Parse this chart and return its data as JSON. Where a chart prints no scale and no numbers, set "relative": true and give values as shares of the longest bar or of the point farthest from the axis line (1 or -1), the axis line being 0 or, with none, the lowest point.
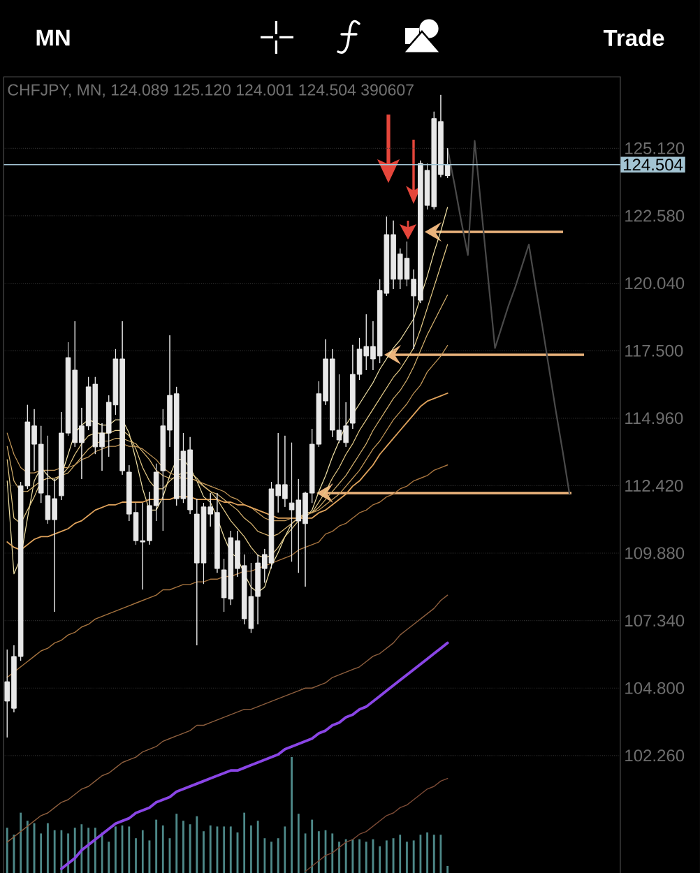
{
  "chart_data": [
    {
      "type": "candlestick",
      "title": "CHFJPY, MN, 124.089 125.120 124.001 124.504 390607",
      "annotations": [
        "MN",
        "Trade"
      ],
      "categories": [
        null,
        null,
        null,
        null,
        null,
        null,
        null,
        null,
        null,
        null,
        null,
        null,
        null,
        null,
        null,
        null,
        null,
        null,
        null,
        null,
        null,
        null,
        null,
        null,
        null,
        null,
        null,
        null,
        null,
        null,
        null,
        null,
        null,
        null,
        null,
        null,
        null,
        null,
        null,
        null,
        null,
        null,
        null,
        null,
        null,
        null,
        null,
        null,
        null,
        null,
        null,
        null,
        null,
        null,
        null,
        null,
        null,
        null,
        null,
        null,
        null,
        null,
        null,
        null,
        null,
        null,
        null,
        null,
        null,
        null,
        null,
        null,
        null,
        null,
        null,
        null,
        null,
        null,
        null,
        null,
        null,
        null,
        null,
        null,
        null,
        null,
        null,
        null,
        null,
        null,
        null
      ],
      "color": "#e8e8e8",
      "ohlc": [
        [
          105.04,
          106.25,
          102.94,
          104.31
        ],
        [
          104.04,
          106.41,
          103.89,
          105.99
        ],
        [
          105.99,
          112.56,
          105.83,
          112.41
        ],
        [
          112.41,
          115.46,
          112.3,
          114.82
        ],
        [
          114.67,
          115.3,
          112.98,
          113.98
        ],
        [
          113.98,
          114.67,
          111.77,
          112.14
        ],
        [
          112.04,
          114.3,
          110.99,
          111.14
        ],
        [
          111.14,
          112.67,
          107.67,
          111.93
        ],
        [
          112.04,
          115.19,
          111.88,
          114.4
        ],
        [
          114.4,
          117.82,
          114.3,
          117.24
        ],
        [
          116.77,
          118.61,
          113.88,
          114.04
        ],
        [
          114.04,
          115.35,
          112.67,
          114.67
        ],
        [
          114.67,
          116.51,
          114.51,
          116.14
        ],
        [
          116.24,
          116.51,
          113.61,
          113.88
        ],
        [
          113.88,
          114.77,
          112.98,
          114.4
        ],
        [
          114.4,
          115.82,
          113.51,
          115.56
        ],
        [
          115.46,
          117.56,
          115.09,
          117.19
        ],
        [
          117.19,
          118.61,
          112.83,
          112.98
        ],
        [
          112.93,
          113.19,
          111.09,
          111.35
        ],
        [
          111.41,
          111.77,
          110.2,
          110.35
        ],
        [
          110.35,
          111.77,
          108.51,
          110.3
        ],
        [
          110.35,
          112.19,
          110.2,
          111.67
        ],
        [
          111.67,
          113.25,
          111.09,
          112.93
        ],
        [
          112.98,
          115.3,
          110.72,
          114.67
        ],
        [
          114.51,
          118.08,
          113.88,
          115.82
        ],
        [
          115.88,
          116.14,
          111.67,
          111.93
        ],
        [
          111.93,
          114.4,
          111.77,
          113.72
        ],
        [
          113.77,
          114.25,
          111.35,
          111.51
        ],
        [
          111.35,
          111.93,
          106.41,
          109.51
        ],
        [
          109.51,
          111.77,
          108.72,
          111.62
        ],
        [
          111.62,
          112.14,
          110.88,
          111.35
        ],
        [
          111.41,
          112.14,
          109.14,
          109.3
        ],
        [
          109.25,
          109.67,
          107.67,
          108.2
        ],
        [
          108.15,
          110.72,
          107.93,
          110.46
        ],
        [
          110.35,
          110.72,
          108.99,
          109.3
        ],
        [
          109.41,
          109.83,
          107.2,
          107.41
        ],
        [
          107.04,
          109.51,
          106.88,
          108.25
        ],
        [
          108.25,
          109.83,
          107.2,
          109.51
        ],
        [
          109.3,
          110.04,
          108.77,
          109.83
        ],
        [
          109.51,
          112.56,
          109.3,
          112.3
        ],
        [
          112.04,
          114.4,
          111.41,
          112.46
        ],
        [
          112.46,
          114.3,
          111.62,
          111.93
        ],
        [
          111.77,
          114.04,
          109.56,
          111.51
        ],
        [
          111.88,
          112.67,
          109.14,
          111.09
        ],
        [
          110.99,
          112.19,
          108.62,
          112.14
        ],
        [
          112.14,
          114.56,
          111.77,
          113.98
        ],
        [
          113.98,
          116.35,
          113.88,
          115.88
        ],
        [
          115.61,
          117.93,
          115.46,
          117.19
        ],
        [
          117.19,
          117.56,
          114.25,
          114.51
        ],
        [
          114.51,
          116.61,
          114.04,
          114.14
        ],
        [
          114.04,
          115.56,
          113.88,
          114.67
        ],
        [
          114.77,
          117.72,
          114.56,
          116.61
        ],
        [
          116.61,
          117.98,
          116.4,
          117.56
        ],
        [
          117.3,
          118.87,
          116.77,
          117.66
        ],
        [
          117.66,
          118.61,
          116.77,
          117.19
        ],
        [
          117.3,
          120.19,
          117.03,
          119.77
        ],
        [
          119.66,
          122.55,
          119.56,
          121.87
        ],
        [
          121.87,
          122.4,
          119.82,
          120.19
        ],
        [
          120.19,
          121.35,
          119.82,
          121.14
        ],
        [
          120.98,
          121.61,
          119.93,
          120.19
        ],
        [
          120.19,
          120.56,
          117.56,
          119.56
        ],
        [
          119.4,
          124.66,
          119.29,
          124.55
        ],
        [
          124.29,
          124.55,
          122.82,
          122.97
        ],
        [
          122.92,
          126.5,
          122.82,
          126.24
        ],
        [
          126.13,
          127.13,
          124.03,
          124.13
        ],
        [
          124.089,
          125.12,
          124.001,
          124.504
        ],
        null,
        null,
        null,
        null,
        null,
        null,
        null,
        null,
        null,
        null,
        null,
        null,
        null,
        null,
        null,
        null,
        null,
        null,
        null,
        null,
        null,
        null,
        null,
        null,
        null
      ],
      "series": [
        {
          "type": "line",
          "color": "#f2e3a8",
          "values": [
            112.6,
            109.1,
            109.7,
            111.2,
            112.6,
            113.1,
            112.8,
            112.6,
            112.8,
            113.6,
            114.4,
            114.7,
            114.9,
            114.8,
            114.7,
            114.7,
            114.9,
            114.9,
            114.4,
            113.4,
            112.3,
            111.5,
            111.5,
            112.0,
            112.8,
            113.4,
            113.4,
            113.1,
            112.6,
            112.0,
            111.8,
            111.2,
            110.5,
            109.9,
            109.7,
            109.1,
            108.6,
            108.4,
            108.6,
            109.4,
            109.9,
            110.5,
            111.0,
            111.2,
            111.2,
            111.5,
            112.2,
            112.8,
            113.5,
            114.1,
            114.7,
            115.1,
            115.5,
            115.9,
            116.3,
            116.8,
            117.2,
            117.6,
            117.9,
            118.3,
            118.7,
            119.5,
            120.3,
            121.2,
            122.0,
            122.9,
            null,
            null,
            null,
            null,
            null,
            null,
            null,
            null,
            null,
            null,
            null,
            null,
            null,
            null,
            null,
            null,
            null,
            null,
            null,
            null,
            null,
            null,
            null,
            null,
            null
          ]
        },
        {
          "type": "line",
          "color": "#e6cc88",
          "values": [
            113.4,
            111.2,
            111.0,
            111.5,
            112.0,
            112.6,
            112.7,
            112.7,
            112.8,
            113.1,
            113.6,
            114.0,
            114.3,
            114.4,
            114.4,
            114.4,
            114.5,
            114.5,
            114.3,
            113.8,
            113.1,
            112.6,
            112.3,
            112.3,
            112.6,
            112.8,
            112.9,
            112.9,
            112.7,
            112.4,
            112.2,
            111.9,
            111.5,
            111.1,
            110.8,
            110.5,
            110.1,
            109.8,
            109.7,
            109.8,
            110.1,
            110.5,
            110.8,
            111.1,
            111.4,
            111.4,
            111.8,
            112.2,
            112.7,
            113.1,
            113.6,
            114.0,
            114.5,
            114.9,
            115.3,
            115.7,
            116.1,
            116.5,
            116.8,
            117.2,
            117.6,
            118.3,
            119.1,
            119.9,
            120.7,
            121.5,
            null,
            null,
            null,
            null,
            null,
            null,
            null,
            null,
            null,
            null,
            null,
            null,
            null,
            null,
            null,
            null,
            null,
            null,
            null,
            null,
            null,
            null,
            null,
            null,
            null
          ]
        },
        {
          "type": "line",
          "color": "#d8b470",
          "values": [
            113.9,
            112.6,
            112.2,
            112.2,
            112.4,
            112.6,
            112.7,
            112.7,
            112.8,
            112.9,
            113.2,
            113.5,
            113.8,
            114.0,
            114.1,
            114.1,
            114.2,
            114.2,
            114.1,
            114.0,
            113.7,
            113.4,
            113.0,
            112.8,
            112.7,
            112.7,
            112.7,
            112.7,
            112.6,
            112.4,
            112.2,
            112.1,
            111.9,
            111.7,
            111.5,
            111.2,
            111.0,
            110.7,
            110.6,
            110.5,
            110.6,
            110.8,
            111.0,
            111.2,
            111.4,
            111.4,
            111.6,
            111.9,
            112.2,
            112.5,
            112.8,
            113.2,
            113.6,
            114.0,
            114.5,
            114.9,
            115.3,
            115.7,
            116.0,
            116.4,
            116.9,
            117.5,
            118.1,
            118.6,
            119.1,
            119.6,
            null,
            null,
            null,
            null,
            null,
            null,
            null,
            null,
            null,
            null,
            null,
            null,
            null,
            null,
            null,
            null,
            null,
            null,
            null,
            null,
            null,
            null,
            null,
            null,
            null
          ]
        },
        {
          "type": "line",
          "color": "#c69a5a",
          "values": [
            114.4,
            113.6,
            113.1,
            112.9,
            112.9,
            113.0,
            113.0,
            113.0,
            113.1,
            113.1,
            113.2,
            113.4,
            113.5,
            113.7,
            113.8,
            113.9,
            113.9,
            114.0,
            113.9,
            113.9,
            113.8,
            113.6,
            113.4,
            113.1,
            112.9,
            112.8,
            112.7,
            112.7,
            112.6,
            112.5,
            112.4,
            112.3,
            112.2,
            112.0,
            111.9,
            111.7,
            111.6,
            111.4,
            111.2,
            111.1,
            111.1,
            111.1,
            111.2,
            111.2,
            111.3,
            111.4,
            111.5,
            111.7,
            111.9,
            112.1,
            112.4,
            112.7,
            113.0,
            113.4,
            113.8,
            114.1,
            114.5,
            114.9,
            115.2,
            115.5,
            115.9,
            116.2,
            116.7,
            117.0,
            117.3,
            117.7,
            null,
            null,
            null,
            null,
            null,
            null,
            null,
            null,
            null,
            null,
            null,
            null,
            null,
            null,
            null,
            null,
            null,
            null,
            null,
            null,
            null,
            null,
            null,
            null,
            null
          ]
        },
        {
          "type": "line",
          "color": "#e0a35c",
          "values": [
            110.3,
            110.1,
            110.0,
            110.2,
            110.4,
            110.5,
            110.5,
            110.6,
            110.7,
            110.8,
            111.0,
            111.1,
            111.3,
            111.5,
            111.6,
            111.7,
            111.7,
            111.8,
            111.8,
            111.8,
            111.8,
            111.9,
            111.9,
            111.9,
            111.9,
            112.0,
            112.0,
            112.0,
            111.9,
            111.9,
            111.9,
            111.9,
            111.8,
            111.8,
            111.7,
            111.7,
            111.6,
            111.5,
            111.4,
            111.3,
            111.2,
            111.2,
            111.2,
            111.2,
            111.2,
            111.2,
            111.4,
            111.5,
            111.7,
            111.9,
            112.1,
            112.4,
            112.6,
            112.9,
            113.2,
            113.6,
            113.9,
            114.2,
            114.5,
            114.8,
            115.1,
            115.4,
            115.6,
            115.7,
            115.8,
            115.9,
            null,
            null,
            null,
            null,
            null,
            null,
            null,
            null,
            null,
            null,
            null,
            null,
            null,
            null,
            null,
            null,
            null,
            null,
            null,
            null,
            null,
            null,
            null,
            null,
            null
          ]
        },
        {
          "type": "line",
          "color": "#a7743f",
          "values": [
            105.2,
            105.4,
            105.6,
            105.8,
            106.0,
            106.2,
            106.3,
            106.5,
            106.6,
            106.8,
            106.9,
            107.1,
            107.2,
            107.4,
            107.5,
            107.6,
            107.7,
            107.8,
            107.9,
            108.0,
            108.1,
            108.2,
            108.3,
            108.5,
            108.5,
            108.6,
            108.7,
            108.7,
            108.8,
            108.8,
            108.9,
            108.9,
            109.0,
            109.0,
            109.1,
            109.2,
            109.2,
            109.3,
            109.4,
            109.5,
            109.6,
            109.7,
            109.8,
            110.0,
            110.1,
            110.2,
            110.3,
            110.6,
            110.7,
            110.9,
            111.0,
            111.2,
            111.4,
            111.5,
            111.7,
            111.8,
            112.0,
            112.1,
            112.3,
            112.4,
            112.6,
            112.7,
            112.8,
            113.0,
            113.1,
            113.2,
            null,
            null,
            null,
            null,
            null,
            null,
            null,
            null,
            null,
            null,
            null,
            null,
            null,
            null,
            null,
            null,
            null,
            null,
            null,
            null,
            null,
            null,
            null,
            null,
            null
          ]
        },
        {
          "type": "line",
          "color": "#8e5f3e",
          "values": [
            99.0,
            99.2,
            99.4,
            99.6,
            99.8,
            100.0,
            100.1,
            100.3,
            100.5,
            100.6,
            100.8,
            101.0,
            101.1,
            101.3,
            101.5,
            101.6,
            101.8,
            102.0,
            102.1,
            102.2,
            102.4,
            102.5,
            102.6,
            102.8,
            102.9,
            103.0,
            103.1,
            103.2,
            103.4,
            103.4,
            103.5,
            103.6,
            103.7,
            103.8,
            103.9,
            104.0,
            104.0,
            104.1,
            104.2,
            104.3,
            104.4,
            104.5,
            104.6,
            104.7,
            104.8,
            104.8,
            104.9,
            105.0,
            105.2,
            105.3,
            105.4,
            105.5,
            105.6,
            105.8,
            106.0,
            106.1,
            106.3,
            106.5,
            106.8,
            107.0,
            107.2,
            107.4,
            107.6,
            107.8,
            108.1,
            108.3,
            null,
            null,
            null,
            null,
            null,
            null,
            null,
            null,
            null,
            null,
            null,
            null,
            null,
            null,
            null,
            null,
            null,
            null,
            null,
            null,
            null,
            null,
            null,
            null,
            null
          ]
        },
        {
          "type": "line",
          "color": "#8a45e6",
          "values": [
            null,
            null,
            null,
            null,
            null,
            null,
            null,
            null,
            98.0,
            98.2,
            98.4,
            98.7,
            98.9,
            99.1,
            99.3,
            99.5,
            99.7,
            99.8,
            99.9,
            100.1,
            100.2,
            100.3,
            100.5,
            100.6,
            100.7,
            100.9,
            101.0,
            101.1,
            101.2,
            101.3,
            101.4,
            101.5,
            101.6,
            101.7,
            101.7,
            101.8,
            101.9,
            102.0,
            102.1,
            102.2,
            102.3,
            102.5,
            102.6,
            102.7,
            102.8,
            102.9,
            103.1,
            103.2,
            103.4,
            103.5,
            103.7,
            103.8,
            104.0,
            104.1,
            104.3,
            104.5,
            104.7,
            104.9,
            105.1,
            105.3,
            105.5,
            105.7,
            105.9,
            106.1,
            106.3,
            106.5,
            null,
            null,
            null,
            null,
            null,
            null,
            null,
            null,
            null,
            null,
            null,
            null,
            null,
            null,
            null,
            null,
            null,
            null,
            null,
            null,
            null,
            null,
            null,
            null,
            null
          ]
        },
        {
          "type": "line",
          "color": "#7d4b36",
          "values": [
            null,
            null,
            null,
            null,
            null,
            null,
            null,
            null,
            null,
            null,
            null,
            null,
            null,
            null,
            null,
            null,
            null,
            null,
            null,
            null,
            null,
            null,
            null,
            null,
            null,
            null,
            null,
            null,
            null,
            null,
            null,
            null,
            null,
            null,
            null,
            null,
            null,
            null,
            null,
            null,
            null,
            null,
            null,
            null,
            97.9,
            98.1,
            98.3,
            98.5,
            98.6,
            98.8,
            99.0,
            99.1,
            99.3,
            99.4,
            99.6,
            99.8,
            100.0,
            100.1,
            100.3,
            100.4,
            100.6,
            100.8,
            101.0,
            101.1,
            101.3,
            101.4,
            null,
            null,
            null,
            null,
            null,
            null,
            null,
            null,
            null,
            null,
            null,
            null,
            null,
            null,
            null,
            null,
            null,
            null,
            null,
            null,
            null,
            null,
            null,
            null,
            null
          ]
        },
        {
          "type": "line",
          "color": "#4a4a4a",
          "values": [
            null,
            null,
            null,
            null,
            null,
            null,
            null,
            null,
            null,
            null,
            null,
            null,
            null,
            null,
            null,
            null,
            null,
            null,
            null,
            null,
            null,
            null,
            null,
            null,
            null,
            null,
            null,
            null,
            null,
            null,
            null,
            null,
            null,
            null,
            null,
            null,
            null,
            null,
            null,
            null,
            null,
            null,
            null,
            null,
            null,
            null,
            null,
            null,
            null,
            null,
            null,
            null,
            null,
            null,
            null,
            null,
            null,
            null,
            null,
            null,
            null,
            null,
            null,
            null,
            null,
            125.1,
            123.8,
            122.4,
            121.1,
            125.4,
            122.8,
            120.2,
            117.6,
            118.4,
            119.2,
            119.9,
            120.7,
            121.5,
            119.9,
            118.4,
            116.8,
            115.2,
            113.7,
            112.1,
            null,
            null,
            null,
            null,
            null,
            null,
            null
          ]
        }
      ],
      "ylim": [
        97.84,
        127.81
      ],
      "yticks": [
        {
          "value": 102.26,
          "label": "102.260"
        },
        {
          "value": 104.8,
          "label": "104.800"
        },
        {
          "value": 107.34,
          "label": "107.340"
        },
        {
          "value": 109.88,
          "label": "109.880"
        },
        {
          "value": 112.42,
          "label": "112.420"
        },
        {
          "value": 114.96,
          "label": "114.960"
        },
        {
          "value": 117.5,
          "label": "117.500"
        },
        {
          "value": 120.04,
          "label": "120.040"
        },
        {
          "value": 122.58,
          "label": "122.580"
        },
        {
          "value": 125.12,
          "label": "125.120"
        }
      ],
      "grid": "y",
      "ref_lines": [
        {
          "axis": "y",
          "value": 124.504,
          "label": "124.504",
          "color": "#a3c4d3"
        }
      ]
    },
    {
      "type": "bar",
      "relative": true,
      "color": "#4f8a8a",
      "categories": [
        null,
        null,
        null,
        null,
        null,
        null,
        null,
        null,
        null,
        null,
        null,
        null,
        null,
        null,
        null,
        null,
        null,
        null,
        null,
        null,
        null,
        null,
        null,
        null,
        null,
        null,
        null,
        null,
        null,
        null,
        null,
        null,
        null,
        null,
        null,
        null,
        null,
        null,
        null,
        null,
        null,
        null,
        null,
        null,
        null,
        null,
        null,
        null,
        null,
        null,
        null,
        null,
        null,
        null,
        null,
        null,
        null,
        null,
        null,
        null,
        null,
        null,
        null,
        null,
        null,
        null,
        null,
        null,
        null,
        null,
        null,
        null,
        null,
        null,
        null,
        null,
        null,
        null,
        null,
        null,
        null,
        null,
        null,
        null,
        null,
        null,
        null,
        null,
        null,
        null,
        null
      ],
      "values": [
        0.39,
        0.33,
        0.52,
        0.45,
        0.43,
        0.34,
        0.43,
        0.37,
        0.37,
        0.34,
        0.39,
        0.42,
        0.39,
        0.39,
        0.35,
        0.27,
        0.4,
        0.41,
        0.4,
        0.3,
        0.37,
        0.28,
        0.46,
        0.41,
        0.3,
        0.51,
        0.45,
        0.42,
        0.49,
        0.36,
        0.41,
        0.4,
        0.4,
        0.4,
        0.35,
        0.52,
        0.41,
        0.45,
        0.3,
        0.27,
        0.3,
        0.4,
        1,
        0.51,
        0.34,
        0.46,
        0.36,
        0.37,
        0.34,
        0.27,
        0.29,
        0.29,
        0.29,
        0.27,
        0.29,
        0.23,
        0.28,
        0.3,
        0.33,
        0.27,
        0.28,
        0.33,
        0.35,
        0.33,
        0.33,
        0.06,
        null,
        null,
        null,
        null,
        null,
        null,
        null,
        null,
        null,
        null,
        null,
        null,
        null,
        null,
        null,
        null,
        null,
        null,
        null,
        null,
        null,
        null,
        null,
        null,
        null
      ]
    }
  ]
}
